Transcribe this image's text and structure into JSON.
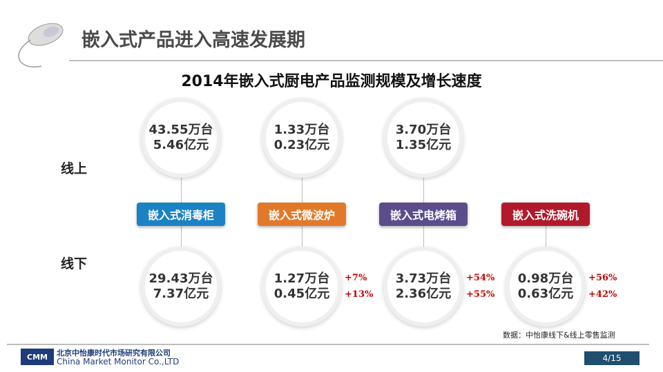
{
  "header": {
    "title": "嵌入式产品进入高速发展期"
  },
  "chart_title": "2014年嵌入式厨电产品监测规模及增长速度",
  "row_labels": {
    "online": "线上",
    "offline": "线下"
  },
  "products": [
    {
      "name": "嵌入式消毒柜",
      "color": "#1b82c4",
      "online": [
        "43.55万台",
        "5.46亿元"
      ],
      "offline": [
        "29.43万台",
        "7.37亿元"
      ]
    },
    {
      "name": "嵌入式微波炉",
      "color": "#e2792a",
      "online": [
        "1.33万台",
        "0.23亿元"
      ],
      "offline": [
        "1.27万台",
        "0.45亿元"
      ],
      "growth": [
        "+7%",
        "+13%"
      ]
    },
    {
      "name": "嵌入式电烤箱",
      "color": "#5b4d8c",
      "online": [
        "3.70万台",
        "1.35亿元"
      ],
      "offline": [
        "3.73万台",
        "2.36亿元"
      ],
      "growth": [
        "+54%",
        "+55%"
      ]
    },
    {
      "name": "嵌入式洗碗机",
      "color": "#b3192c",
      "offline": [
        "0.98万台",
        "0.63亿元"
      ],
      "growth": [
        "+56%",
        "+42%"
      ]
    }
  ],
  "footer": {
    "source": "数据：中怡康线下&线上零售监测",
    "logo": "CMM",
    "company_cn": "北京中怡康时代市场研究有限公司",
    "company_en": "China Market Monitor Co.,LTD",
    "page": "4/15"
  }
}
